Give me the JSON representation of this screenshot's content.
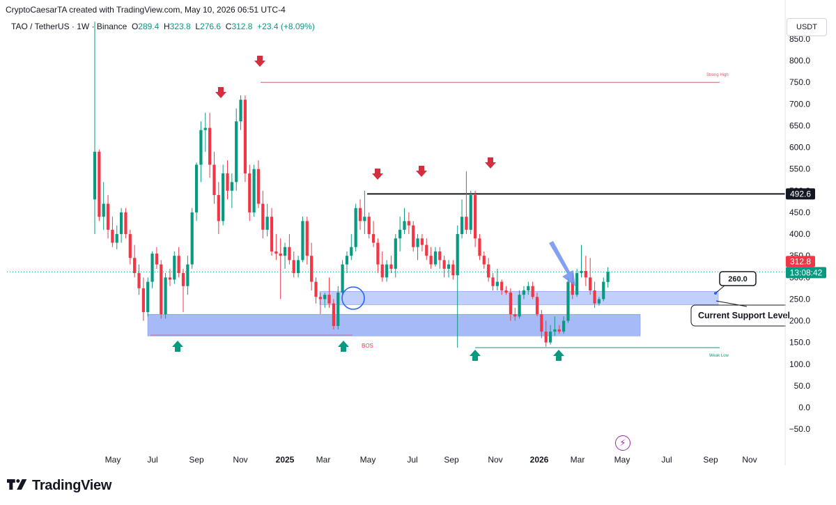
{
  "header": {
    "attribution": "CryptoCaesarTA created with TradingView.com, May 10, 2026 06:51 UTC-4",
    "symbol": "TAO / TetherUS · 1W · Binance",
    "open_label": "O",
    "open": "289.4",
    "high_label": "H",
    "high": "323.8",
    "low_label": "L",
    "low": "276.6",
    "close_label": "C",
    "close": "312.8",
    "change": "+23.4 (+8.09%)"
  },
  "currency": "USDT",
  "branding": {
    "logo_icon": "tradingview-logo-icon",
    "name": "TradingView"
  },
  "colors": {
    "up": "#089981",
    "down": "#f23645",
    "zone": "#8ea9f5",
    "arrow_red": "#d32f3f",
    "arrow_green": "#089981"
  },
  "chart_data": {
    "type": "candlestick",
    "price_axis": {
      "ticks": [
        850,
        800,
        750,
        700,
        650,
        600,
        550,
        500,
        450,
        400,
        350,
        300,
        250,
        200,
        150,
        100,
        50,
        0,
        -50
      ],
      "labels": [
        "850.0",
        "800.0",
        "750.0",
        "700.0",
        "650.0",
        "600.0",
        "550.0",
        "500.0",
        "450.0",
        "400.0",
        "350.0",
        "300.0",
        "250.0",
        "200.0",
        "150.0",
        "100.0",
        "50.0",
        "0.0",
        "−50.0"
      ],
      "range": [
        -75,
        905
      ]
    },
    "time_axis": {
      "labels": [
        "May",
        "Jul",
        "Sep",
        "Nov",
        "2025",
        "Mar",
        "May",
        "Jul",
        "Sep",
        "Nov",
        "2026",
        "Mar",
        "May",
        "Jul",
        "Sep",
        "Nov"
      ],
      "bold": [
        "2025",
        "2026"
      ]
    },
    "last_price": {
      "value": 312.8,
      "label": "312.8",
      "countdown": "13:08:42"
    },
    "resistance_line": {
      "value": 492.6,
      "label": "492.6"
    },
    "strong_high": {
      "value": 750,
      "label": "Strong High"
    },
    "weak_low": {
      "value": 138,
      "label": "Weak Low"
    },
    "bos_label": "BOS",
    "support_zones": [
      {
        "low": 237,
        "high": 268
      },
      {
        "low": 165,
        "high": 215
      }
    ],
    "callouts": [
      {
        "text": "260.0"
      },
      {
        "text": "Current Support Level"
      }
    ],
    "candles": [
      {
        "o": 480,
        "h": 890,
        "l": 400,
        "c": 590
      },
      {
        "o": 590,
        "h": 595,
        "l": 430,
        "c": 440
      },
      {
        "o": 440,
        "h": 520,
        "l": 410,
        "c": 470
      },
      {
        "o": 470,
        "h": 490,
        "l": 390,
        "c": 410
      },
      {
        "o": 410,
        "h": 440,
        "l": 370,
        "c": 380
      },
      {
        "o": 380,
        "h": 420,
        "l": 365,
        "c": 400
      },
      {
        "o": 400,
        "h": 460,
        "l": 380,
        "c": 450
      },
      {
        "o": 450,
        "h": 460,
        "l": 390,
        "c": 400
      },
      {
        "o": 400,
        "h": 410,
        "l": 330,
        "c": 345
      },
      {
        "o": 345,
        "h": 375,
        "l": 300,
        "c": 310
      },
      {
        "o": 310,
        "h": 330,
        "l": 260,
        "c": 275
      },
      {
        "o": 275,
        "h": 300,
        "l": 200,
        "c": 220
      },
      {
        "o": 220,
        "h": 300,
        "l": 210,
        "c": 290
      },
      {
        "o": 290,
        "h": 360,
        "l": 275,
        "c": 355
      },
      {
        "o": 355,
        "h": 370,
        "l": 320,
        "c": 330
      },
      {
        "o": 330,
        "h": 340,
        "l": 205,
        "c": 215
      },
      {
        "o": 215,
        "h": 310,
        "l": 205,
        "c": 300
      },
      {
        "o": 300,
        "h": 320,
        "l": 280,
        "c": 295
      },
      {
        "o": 295,
        "h": 360,
        "l": 285,
        "c": 350
      },
      {
        "o": 350,
        "h": 370,
        "l": 300,
        "c": 310
      },
      {
        "o": 310,
        "h": 320,
        "l": 220,
        "c": 280
      },
      {
        "o": 280,
        "h": 350,
        "l": 260,
        "c": 330
      },
      {
        "o": 330,
        "h": 460,
        "l": 320,
        "c": 450
      },
      {
        "o": 450,
        "h": 565,
        "l": 430,
        "c": 560
      },
      {
        "o": 560,
        "h": 660,
        "l": 520,
        "c": 640
      },
      {
        "o": 640,
        "h": 680,
        "l": 590,
        "c": 645
      },
      {
        "o": 645,
        "h": 680,
        "l": 530,
        "c": 560
      },
      {
        "o": 560,
        "h": 590,
        "l": 470,
        "c": 490
      },
      {
        "o": 490,
        "h": 520,
        "l": 400,
        "c": 430
      },
      {
        "o": 430,
        "h": 560,
        "l": 420,
        "c": 540
      },
      {
        "o": 540,
        "h": 570,
        "l": 480,
        "c": 500
      },
      {
        "o": 500,
        "h": 540,
        "l": 460,
        "c": 520
      },
      {
        "o": 520,
        "h": 690,
        "l": 500,
        "c": 660
      },
      {
        "o": 660,
        "h": 720,
        "l": 640,
        "c": 710
      },
      {
        "o": 710,
        "h": 720,
        "l": 520,
        "c": 540
      },
      {
        "o": 540,
        "h": 560,
        "l": 430,
        "c": 450
      },
      {
        "o": 450,
        "h": 560,
        "l": 440,
        "c": 550
      },
      {
        "o": 550,
        "h": 570,
        "l": 460,
        "c": 470
      },
      {
        "o": 470,
        "h": 500,
        "l": 390,
        "c": 410
      },
      {
        "o": 410,
        "h": 470,
        "l": 395,
        "c": 440
      },
      {
        "o": 440,
        "h": 460,
        "l": 350,
        "c": 360
      },
      {
        "o": 360,
        "h": 400,
        "l": 340,
        "c": 355
      },
      {
        "o": 355,
        "h": 390,
        "l": 250,
        "c": 350
      },
      {
        "o": 350,
        "h": 380,
        "l": 320,
        "c": 370
      },
      {
        "o": 370,
        "h": 400,
        "l": 330,
        "c": 340
      },
      {
        "o": 340,
        "h": 360,
        "l": 300,
        "c": 310
      },
      {
        "o": 310,
        "h": 350,
        "l": 300,
        "c": 340
      },
      {
        "o": 340,
        "h": 440,
        "l": 335,
        "c": 430
      },
      {
        "o": 430,
        "h": 440,
        "l": 330,
        "c": 350
      },
      {
        "o": 350,
        "h": 380,
        "l": 270,
        "c": 290
      },
      {
        "o": 290,
        "h": 300,
        "l": 240,
        "c": 255
      },
      {
        "o": 255,
        "h": 265,
        "l": 215,
        "c": 250
      },
      {
        "o": 250,
        "h": 265,
        "l": 230,
        "c": 260
      },
      {
        "o": 260,
        "h": 300,
        "l": 230,
        "c": 240
      },
      {
        "o": 240,
        "h": 250,
        "l": 180,
        "c": 188
      },
      {
        "o": 188,
        "h": 280,
        "l": 180,
        "c": 265
      },
      {
        "o": 265,
        "h": 340,
        "l": 255,
        "c": 330
      },
      {
        "o": 330,
        "h": 360,
        "l": 310,
        "c": 350
      },
      {
        "o": 350,
        "h": 400,
        "l": 340,
        "c": 370
      },
      {
        "o": 370,
        "h": 470,
        "l": 360,
        "c": 460
      },
      {
        "o": 460,
        "h": 480,
        "l": 410,
        "c": 430
      },
      {
        "o": 430,
        "h": 500,
        "l": 400,
        "c": 440
      },
      {
        "o": 440,
        "h": 450,
        "l": 390,
        "c": 400
      },
      {
        "o": 400,
        "h": 430,
        "l": 370,
        "c": 380
      },
      {
        "o": 380,
        "h": 390,
        "l": 310,
        "c": 330
      },
      {
        "o": 330,
        "h": 360,
        "l": 290,
        "c": 300
      },
      {
        "o": 300,
        "h": 340,
        "l": 290,
        "c": 330
      },
      {
        "o": 330,
        "h": 350,
        "l": 310,
        "c": 320
      },
      {
        "o": 320,
        "h": 400,
        "l": 300,
        "c": 390
      },
      {
        "o": 390,
        "h": 440,
        "l": 360,
        "c": 410
      },
      {
        "o": 410,
        "h": 460,
        "l": 400,
        "c": 430
      },
      {
        "o": 430,
        "h": 450,
        "l": 400,
        "c": 420
      },
      {
        "o": 420,
        "h": 430,
        "l": 360,
        "c": 370
      },
      {
        "o": 370,
        "h": 400,
        "l": 340,
        "c": 390
      },
      {
        "o": 390,
        "h": 400,
        "l": 360,
        "c": 375
      },
      {
        "o": 375,
        "h": 390,
        "l": 340,
        "c": 350
      },
      {
        "o": 350,
        "h": 370,
        "l": 320,
        "c": 330
      },
      {
        "o": 330,
        "h": 370,
        "l": 325,
        "c": 360
      },
      {
        "o": 360,
        "h": 370,
        "l": 320,
        "c": 340
      },
      {
        "o": 340,
        "h": 350,
        "l": 300,
        "c": 320
      },
      {
        "o": 320,
        "h": 340,
        "l": 300,
        "c": 330
      },
      {
        "o": 330,
        "h": 340,
        "l": 295,
        "c": 305
      },
      {
        "o": 305,
        "h": 420,
        "l": 138,
        "c": 400
      },
      {
        "o": 400,
        "h": 480,
        "l": 390,
        "c": 440
      },
      {
        "o": 440,
        "h": 545,
        "l": 400,
        "c": 410
      },
      {
        "o": 410,
        "h": 500,
        "l": 400,
        "c": 490
      },
      {
        "o": 490,
        "h": 500,
        "l": 370,
        "c": 390
      },
      {
        "o": 390,
        "h": 400,
        "l": 340,
        "c": 350
      },
      {
        "o": 350,
        "h": 360,
        "l": 320,
        "c": 330
      },
      {
        "o": 330,
        "h": 345,
        "l": 290,
        "c": 300
      },
      {
        "o": 300,
        "h": 310,
        "l": 270,
        "c": 280
      },
      {
        "o": 280,
        "h": 320,
        "l": 270,
        "c": 290
      },
      {
        "o": 290,
        "h": 295,
        "l": 260,
        "c": 270
      },
      {
        "o": 270,
        "h": 280,
        "l": 260,
        "c": 265
      },
      {
        "o": 265,
        "h": 275,
        "l": 200,
        "c": 215
      },
      {
        "o": 215,
        "h": 230,
        "l": 200,
        "c": 210
      },
      {
        "o": 210,
        "h": 270,
        "l": 205,
        "c": 260
      },
      {
        "o": 260,
        "h": 280,
        "l": 250,
        "c": 270
      },
      {
        "o": 270,
        "h": 290,
        "l": 260,
        "c": 280
      },
      {
        "o": 280,
        "h": 290,
        "l": 250,
        "c": 255
      },
      {
        "o": 255,
        "h": 265,
        "l": 210,
        "c": 215
      },
      {
        "o": 215,
        "h": 225,
        "l": 160,
        "c": 175
      },
      {
        "o": 175,
        "h": 200,
        "l": 140,
        "c": 150
      },
      {
        "o": 150,
        "h": 190,
        "l": 145,
        "c": 175
      },
      {
        "o": 175,
        "h": 210,
        "l": 165,
        "c": 180
      },
      {
        "o": 180,
        "h": 190,
        "l": 170,
        "c": 175
      },
      {
        "o": 175,
        "h": 210,
        "l": 170,
        "c": 200
      },
      {
        "o": 200,
        "h": 300,
        "l": 195,
        "c": 290
      },
      {
        "o": 290,
        "h": 310,
        "l": 250,
        "c": 260
      },
      {
        "o": 260,
        "h": 320,
        "l": 255,
        "c": 310
      },
      {
        "o": 310,
        "h": 375,
        "l": 300,
        "c": 315
      },
      {
        "o": 315,
        "h": 350,
        "l": 280,
        "c": 300
      },
      {
        "o": 300,
        "h": 345,
        "l": 260,
        "c": 270
      },
      {
        "o": 270,
        "h": 290,
        "l": 230,
        "c": 240
      },
      {
        "o": 240,
        "h": 255,
        "l": 235,
        "c": 250
      },
      {
        "o": 250,
        "h": 300,
        "l": 245,
        "c": 290
      },
      {
        "o": 289.4,
        "h": 323.8,
        "l": 276.6,
        "c": 312.8
      }
    ]
  }
}
